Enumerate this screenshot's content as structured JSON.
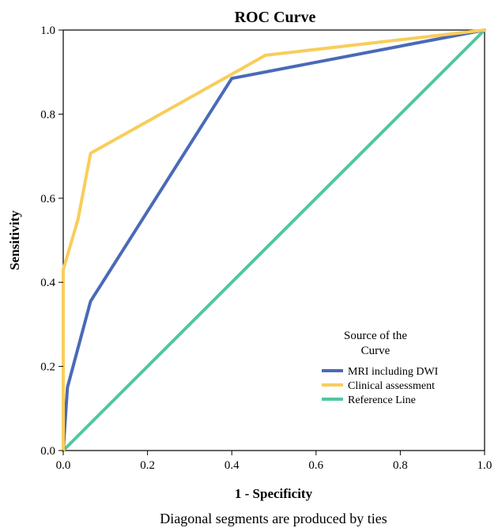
{
  "chart_data": {
    "type": "line",
    "title": "ROC Curve",
    "xlabel": "1 - Specificity",
    "ylabel": "Sensitivity",
    "xlim": [
      0.0,
      1.0
    ],
    "ylim": [
      0.0,
      1.0
    ],
    "x_ticks": [
      "0.0",
      "0.2",
      "0.4",
      "0.6",
      "0.8",
      "1.0"
    ],
    "y_ticks": [
      "0.0",
      "0.2",
      "0.4",
      "0.6",
      "0.8",
      "1.0"
    ],
    "grid": false,
    "legend": {
      "title_lines": [
        "Source of the",
        "Curve"
      ],
      "placement": "bottom-right"
    },
    "footnote": "Diagonal segments are produced by ties",
    "series": [
      {
        "name": "MRI including DWI",
        "color": "#4a6ab8",
        "points": [
          [
            0.0,
            0.0
          ],
          [
            0.01,
            0.15
          ],
          [
            0.065,
            0.355
          ],
          [
            0.4,
            0.885
          ],
          [
            1.0,
            1.0
          ]
        ]
      },
      {
        "name": "Clinical assessment",
        "color": "#f8cd5a",
        "points": [
          [
            0.0,
            0.0
          ],
          [
            0.0,
            0.43
          ],
          [
            0.035,
            0.55
          ],
          [
            0.065,
            0.707
          ],
          [
            0.4,
            0.895
          ],
          [
            0.48,
            0.94
          ],
          [
            1.0,
            1.0
          ]
        ]
      },
      {
        "name": "Reference Line",
        "color": "#4fc79e",
        "points": [
          [
            0.0,
            0.0
          ],
          [
            1.0,
            1.0
          ]
        ]
      }
    ]
  }
}
